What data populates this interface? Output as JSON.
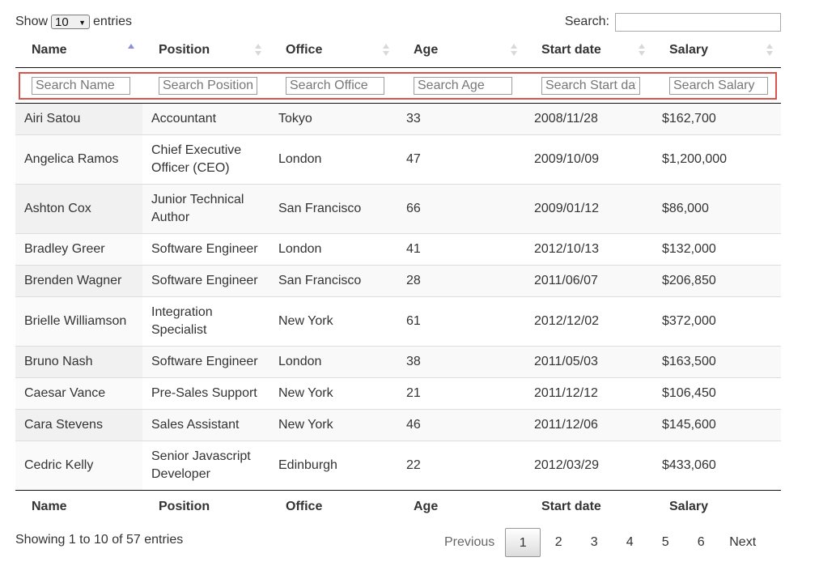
{
  "length_menu": {
    "prefix": "Show",
    "value": "10",
    "suffix": "entries"
  },
  "search": {
    "label": "Search:",
    "value": ""
  },
  "columns": [
    "Name",
    "Position",
    "Office",
    "Age",
    "Start date",
    "Salary"
  ],
  "sort": {
    "column": "Name",
    "direction": "ascending"
  },
  "filters": [
    {
      "placeholder": "Search Name"
    },
    {
      "placeholder": "Search Position"
    },
    {
      "placeholder": "Search Office"
    },
    {
      "placeholder": "Search Age"
    },
    {
      "placeholder": "Search Start date"
    },
    {
      "placeholder": "Search Salary"
    }
  ],
  "rows": [
    [
      "Airi Satou",
      "Accountant",
      "Tokyo",
      "33",
      "2008/11/28",
      "$162,700"
    ],
    [
      "Angelica Ramos",
      "Chief Executive Officer (CEO)",
      "London",
      "47",
      "2009/10/09",
      "$1,200,000"
    ],
    [
      "Ashton Cox",
      "Junior Technical Author",
      "San Francisco",
      "66",
      "2009/01/12",
      "$86,000"
    ],
    [
      "Bradley Greer",
      "Software Engineer",
      "London",
      "41",
      "2012/10/13",
      "$132,000"
    ],
    [
      "Brenden Wagner",
      "Software Engineer",
      "San Francisco",
      "28",
      "2011/06/07",
      "$206,850"
    ],
    [
      "Brielle Williamson",
      "Integration Specialist",
      "New York",
      "61",
      "2012/12/02",
      "$372,000"
    ],
    [
      "Bruno Nash",
      "Software Engineer",
      "London",
      "38",
      "2011/05/03",
      "$163,500"
    ],
    [
      "Caesar Vance",
      "Pre-Sales Support",
      "New York",
      "21",
      "2011/12/12",
      "$106,450"
    ],
    [
      "Cara Stevens",
      "Sales Assistant",
      "New York",
      "46",
      "2011/12/06",
      "$145,600"
    ],
    [
      "Cedric Kelly",
      "Senior Javascript Developer",
      "Edinburgh",
      "22",
      "2012/03/29",
      "$433,060"
    ]
  ],
  "info": "Showing 1 to 10 of 57 entries",
  "pagination": {
    "previous": "Previous",
    "next": "Next",
    "pages": [
      "1",
      "2",
      "3",
      "4",
      "5",
      "6"
    ],
    "current": "1"
  }
}
